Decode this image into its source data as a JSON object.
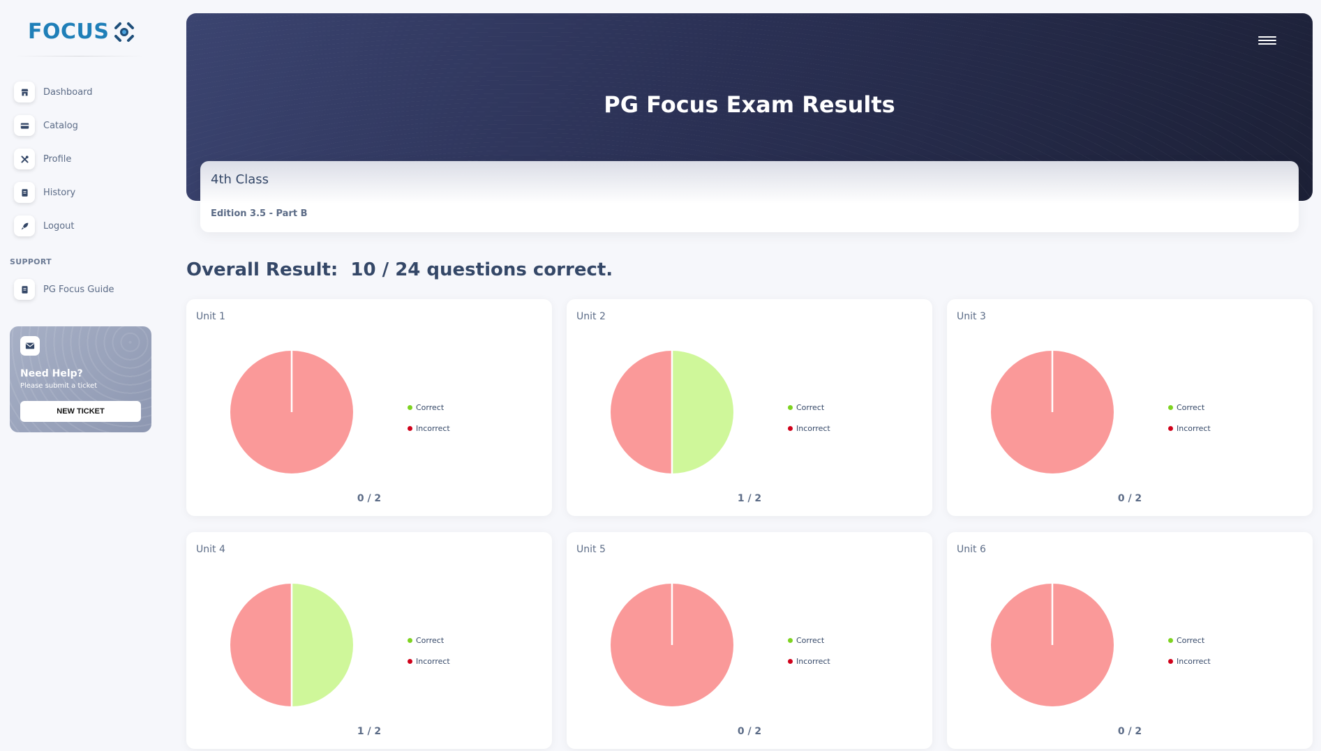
{
  "app": {
    "logo_text": "FOCUS"
  },
  "sidebar": {
    "items": [
      {
        "label": "Dashboard",
        "icon": "shop-icon"
      },
      {
        "label": "Catalog",
        "icon": "credit-card-icon"
      },
      {
        "label": "Profile",
        "icon": "tools-icon"
      },
      {
        "label": "History",
        "icon": "document-icon"
      },
      {
        "label": "Logout",
        "icon": "rocket-icon"
      }
    ],
    "support_title": "SUPPORT",
    "support_items": [
      {
        "label": "PG Focus Guide",
        "icon": "document-icon"
      }
    ],
    "help": {
      "title": "Need Help?",
      "subtitle": "Please submit a ticket",
      "button_label": "NEW TICKET"
    }
  },
  "header": {
    "title": "PG Focus Exam Results",
    "menu_icon": "hamburger-menu-icon"
  },
  "class_info": {
    "name": "4th Class",
    "edition": "Edition 3.5 - Part B"
  },
  "overall": {
    "text": "Overall Result:  10 / 24 questions correct."
  },
  "colors": {
    "correct": "#cff79a",
    "incorrect": "#fa9999",
    "correct_dot": "#7ed321",
    "incorrect_dot": "#d0021b"
  },
  "legend": {
    "correct": "Correct",
    "incorrect": "Incorrect"
  },
  "chart_data": [
    {
      "type": "pie",
      "title": "Unit 1",
      "categories": [
        "Correct",
        "Incorrect"
      ],
      "values": [
        0,
        2
      ],
      "score": "0 / 2"
    },
    {
      "type": "pie",
      "title": "Unit 2",
      "categories": [
        "Correct",
        "Incorrect"
      ],
      "values": [
        1,
        1
      ],
      "score": "1 / 2"
    },
    {
      "type": "pie",
      "title": "Unit 3",
      "categories": [
        "Correct",
        "Incorrect"
      ],
      "values": [
        0,
        2
      ],
      "score": "0 / 2"
    },
    {
      "type": "pie",
      "title": "Unit 4",
      "categories": [
        "Correct",
        "Incorrect"
      ],
      "values": [
        1,
        1
      ],
      "score": "1 / 2"
    },
    {
      "type": "pie",
      "title": "Unit 5",
      "categories": [
        "Correct",
        "Incorrect"
      ],
      "values": [
        0,
        2
      ],
      "score": "0 / 2"
    },
    {
      "type": "pie",
      "title": "Unit 6",
      "categories": [
        "Correct",
        "Incorrect"
      ],
      "values": [
        0,
        2
      ],
      "score": "0 / 2"
    }
  ]
}
